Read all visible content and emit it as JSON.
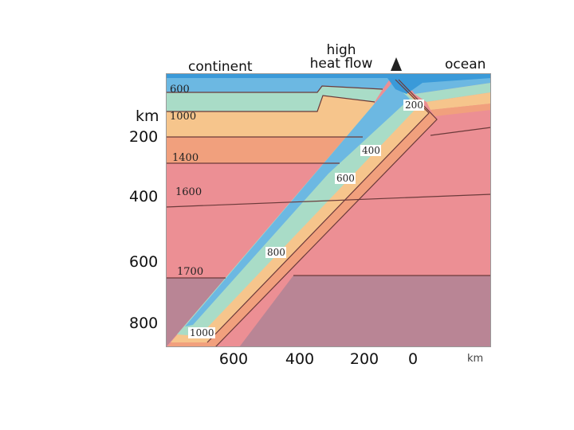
{
  "header": {
    "continent": "continent",
    "high_heat_flow_line1": "high",
    "high_heat_flow_line2": "heat flow",
    "ocean": "ocean"
  },
  "depth_axis": {
    "unit": "km",
    "ticks": [
      "200",
      "400",
      "600",
      "800"
    ]
  },
  "distance_axis": {
    "unit": "km",
    "ticks": [
      "600",
      "400",
      "200",
      "0"
    ]
  },
  "isotherms_left": [
    "600",
    "1000",
    "1400",
    "1600",
    "1700"
  ],
  "isotherms_slab": [
    "200",
    "400",
    "600",
    "800",
    "1000"
  ],
  "colors": {
    "ocean_water": "#3a9ad9",
    "band_coolest": "#6cb8e2",
    "band_cool": "#a9dcc7",
    "band_warm": "#f6c58c",
    "band_hot": "#f1a07d",
    "band_mantle_upper": "#ec9a9c",
    "band_mantle": "#ec8f94",
    "band_deep": "#b98595",
    "contour": "#6b3a3a",
    "volcano": "#222222"
  }
}
